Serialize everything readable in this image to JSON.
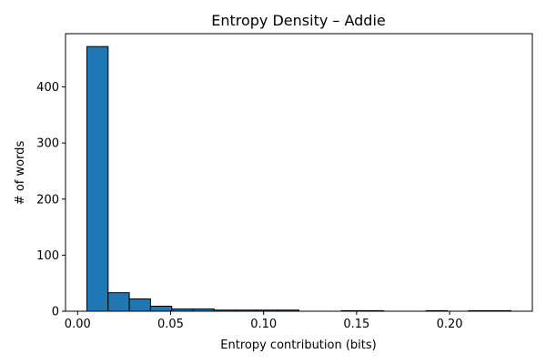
{
  "chart_data": {
    "type": "bar",
    "title": "Entropy Density – Addie",
    "xlabel": "Entropy contribution (bits)",
    "ylabel": "# of words",
    "xlim": [
      -0.0065,
      0.2445
    ],
    "ylim": [
      0,
      495
    ],
    "xticks": [
      0.0,
      0.05,
      0.1,
      0.15,
      0.2
    ],
    "xtick_labels": [
      "0.00",
      "0.05",
      "0.10",
      "0.15",
      "0.20"
    ],
    "yticks": [
      0,
      100,
      200,
      300,
      400
    ],
    "ytick_labels": [
      "0",
      "100",
      "200",
      "300",
      "400"
    ],
    "grid": false,
    "legend": "none",
    "colors": {
      "bar_fill": "#1f77b4",
      "bar_edge": "#000000"
    },
    "bins": [
      {
        "x0": 0.005,
        "x1": 0.0164,
        "value": 472
      },
      {
        "x0": 0.0164,
        "x1": 0.0278,
        "value": 33
      },
      {
        "x0": 0.0278,
        "x1": 0.0392,
        "value": 22
      },
      {
        "x0": 0.0392,
        "x1": 0.0506,
        "value": 9
      },
      {
        "x0": 0.0506,
        "x1": 0.062,
        "value": 4
      },
      {
        "x0": 0.062,
        "x1": 0.0734,
        "value": 4
      },
      {
        "x0": 0.0734,
        "x1": 0.0848,
        "value": 2
      },
      {
        "x0": 0.0848,
        "x1": 0.0962,
        "value": 2
      },
      {
        "x0": 0.0962,
        "x1": 0.1076,
        "value": 2
      },
      {
        "x0": 0.1076,
        "x1": 0.119,
        "value": 2
      },
      {
        "x0": 0.119,
        "x1": 0.1304,
        "value": 0
      },
      {
        "x0": 0.1304,
        "x1": 0.1418,
        "value": 0
      },
      {
        "x0": 0.1418,
        "x1": 0.1532,
        "value": 1
      },
      {
        "x0": 0.1532,
        "x1": 0.1646,
        "value": 1
      },
      {
        "x0": 0.1646,
        "x1": 0.176,
        "value": 0
      },
      {
        "x0": 0.176,
        "x1": 0.1874,
        "value": 0
      },
      {
        "x0": 0.1874,
        "x1": 0.1988,
        "value": 1
      },
      {
        "x0": 0.1988,
        "x1": 0.2102,
        "value": 0
      },
      {
        "x0": 0.2102,
        "x1": 0.2216,
        "value": 1
      },
      {
        "x0": 0.2216,
        "x1": 0.233,
        "value": 1
      }
    ]
  }
}
